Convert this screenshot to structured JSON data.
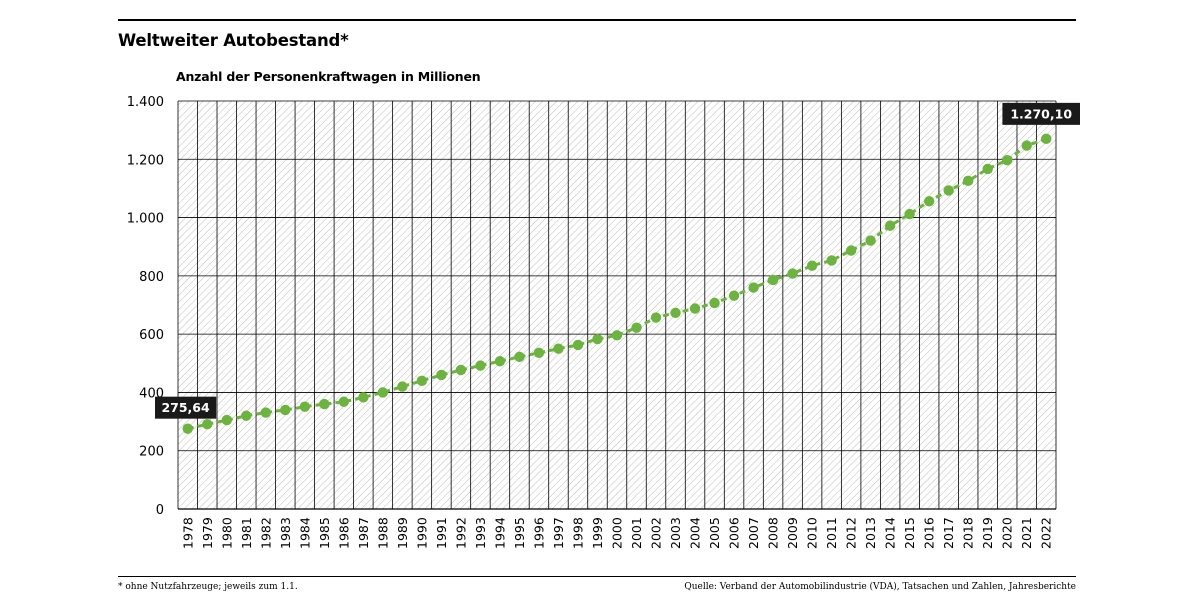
{
  "header": {
    "title": "Weltweiter Autobestand*",
    "subtitle": "Anzahl der Personenkraftwagen in Millionen"
  },
  "footer": {
    "footnote": "* ohne Nutzfahrzeuge; jeweils zum 1.1.",
    "source": "Quelle: Verband der Automobilindustrie (VDA), Tatsachen und Zahlen, Jahresberichte"
  },
  "colors": {
    "series": "#6db33f",
    "callout": "#1a1a1a",
    "grid": "#000000",
    "hatch": "#bdbdbd"
  },
  "chart_data": {
    "type": "line",
    "title": "Weltweiter Autobestand*",
    "ylabel": "Anzahl der Personenkraftwagen in Millionen",
    "xlabel": "",
    "ylim": [
      0,
      1400
    ],
    "yticks": [
      0,
      200,
      400,
      600,
      800,
      1000,
      1200,
      1400
    ],
    "ytick_labels": [
      "0",
      "200",
      "400",
      "600",
      "800",
      "1.000",
      "1.200",
      "1.400"
    ],
    "grid": true,
    "x": [
      "1978",
      "1979",
      "1980",
      "1981",
      "1982",
      "1983",
      "1984",
      "1985",
      "1986",
      "1987",
      "1988",
      "1989",
      "1990",
      "1991",
      "1992",
      "1993",
      "1994",
      "1995",
      "1996",
      "1997",
      "1998",
      "1999",
      "2000",
      "2001",
      "2002",
      "2003",
      "2004",
      "2005",
      "2006",
      "2007",
      "2008",
      "2009",
      "2010",
      "2011",
      "2012",
      "2013",
      "2014",
      "2015",
      "2016",
      "2017",
      "2018",
      "2019",
      "2020",
      "2021",
      "2022"
    ],
    "series": [
      {
        "values": [
          275.64,
          291,
          305,
          320,
          331,
          340,
          351,
          360,
          368,
          383,
          400,
          420,
          440,
          460,
          477,
          492,
          507,
          522,
          536,
          550,
          563,
          583,
          596,
          622,
          657,
          673,
          688,
          707,
          732,
          760,
          786,
          808,
          835,
          853,
          887,
          921,
          972,
          1012,
          1056,
          1093,
          1126,
          1167,
          1197,
          1247,
          1270.1
        ]
      }
    ],
    "annotations": [
      {
        "x": "1978",
        "text": "275,64"
      },
      {
        "x": "2022",
        "text": "1.270,10"
      }
    ]
  }
}
